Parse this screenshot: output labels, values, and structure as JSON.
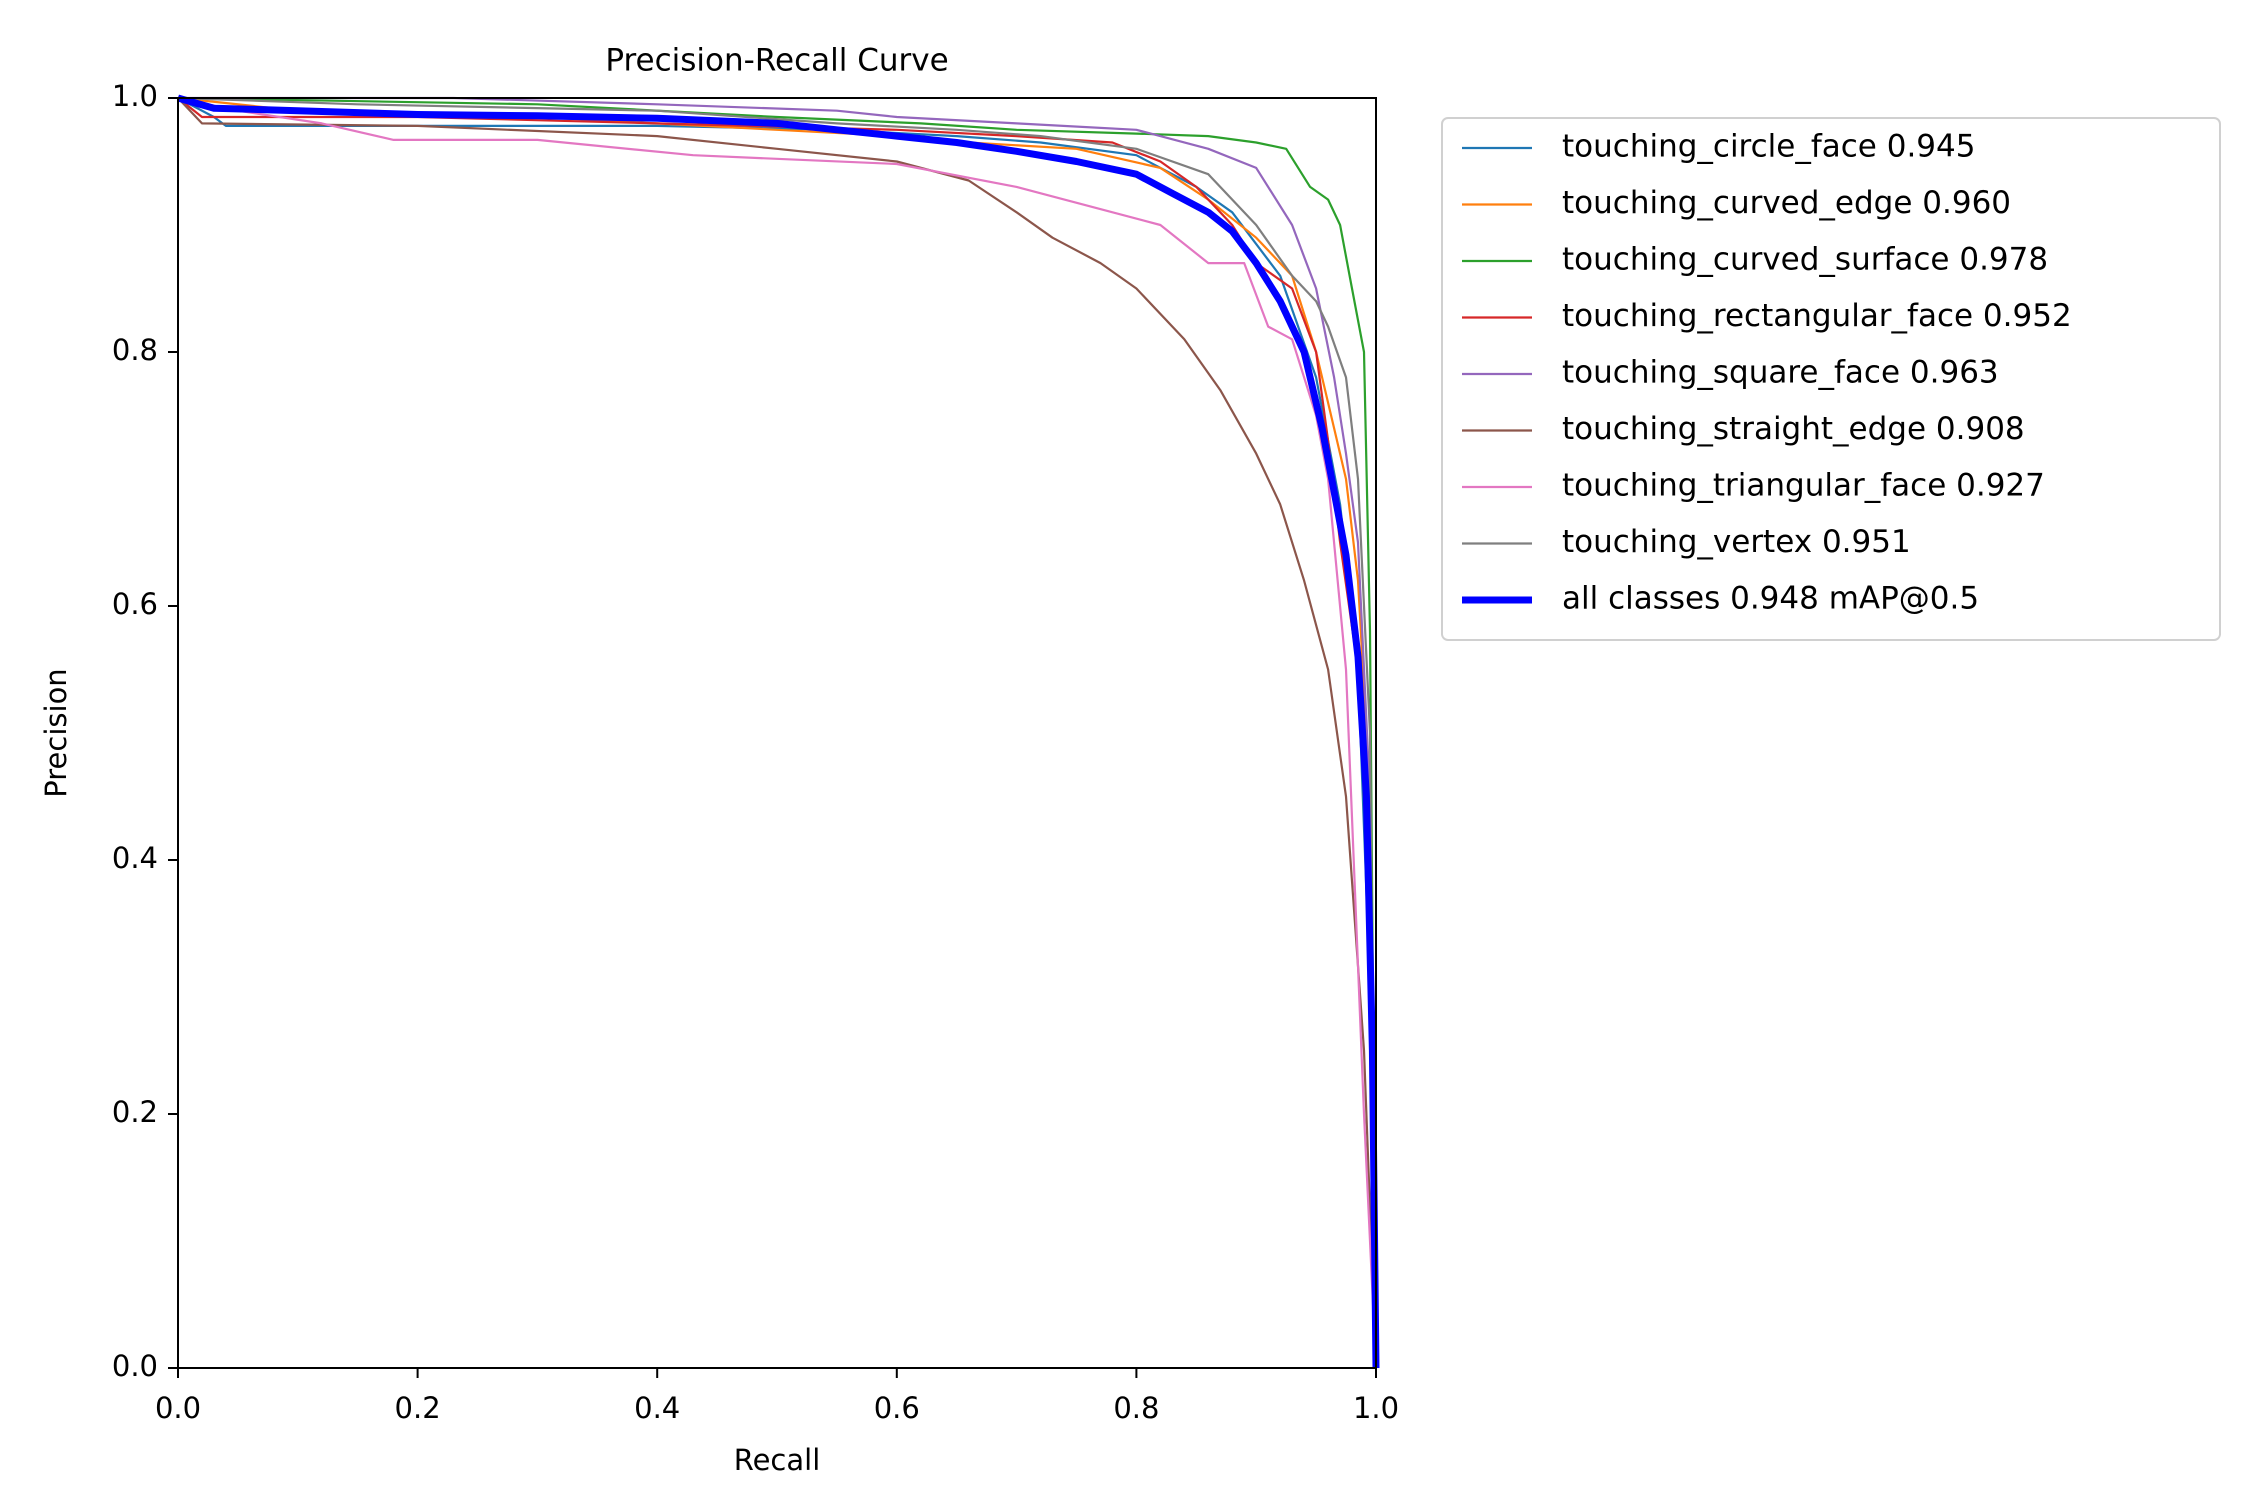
{
  "chart_data": {
    "type": "line",
    "title": "Precision-Recall Curve",
    "xlabel": "Recall",
    "ylabel": "Precision",
    "xlim": [
      0,
      1
    ],
    "ylim": [
      0,
      1
    ],
    "xticks": [
      0.0,
      0.2,
      0.4,
      0.6,
      0.8,
      1.0
    ],
    "yticks": [
      0.0,
      0.2,
      0.4,
      0.6,
      0.8,
      1.0
    ],
    "tick_labels": [
      "0.0",
      "0.2",
      "0.4",
      "0.6",
      "0.8",
      "1.0"
    ],
    "grid": false,
    "legend_position": "outside-right-top",
    "series": [
      {
        "name": "touching_circle_face 0.945",
        "color": "#1f77b4",
        "bold": false,
        "x": [
          0,
          0.03,
          0.04,
          0.2,
          0.4,
          0.55,
          0.65,
          0.72,
          0.8,
          0.85,
          0.88,
          0.92,
          0.95,
          0.97,
          0.985,
          0.995,
          1.0
        ],
        "y": [
          1.0,
          0.985,
          0.978,
          0.978,
          0.978,
          0.975,
          0.97,
          0.965,
          0.955,
          0.93,
          0.91,
          0.86,
          0.78,
          0.68,
          0.55,
          0.3,
          0.0
        ]
      },
      {
        "name": "touching_curved_edge 0.960",
        "color": "#ff7f0e",
        "bold": false,
        "x": [
          0,
          0.1,
          0.3,
          0.5,
          0.6,
          0.66,
          0.75,
          0.82,
          0.86,
          0.9,
          0.93,
          0.95,
          0.965,
          0.975,
          0.985,
          0.995,
          1.0
        ],
        "y": [
          1.0,
          0.99,
          0.985,
          0.975,
          0.97,
          0.965,
          0.96,
          0.945,
          0.92,
          0.89,
          0.86,
          0.8,
          0.74,
          0.7,
          0.62,
          0.45,
          0.0
        ]
      },
      {
        "name": "touching_curved_surface 0.978",
        "color": "#2ca02c",
        "bold": false,
        "x": [
          0,
          0.3,
          0.5,
          0.62,
          0.7,
          0.8,
          0.86,
          0.9,
          0.925,
          0.945,
          0.96,
          0.97,
          0.98,
          0.99,
          0.995,
          1.0
        ],
        "y": [
          1.0,
          0.995,
          0.985,
          0.98,
          0.975,
          0.972,
          0.97,
          0.965,
          0.96,
          0.93,
          0.92,
          0.9,
          0.85,
          0.8,
          0.58,
          0.0
        ]
      },
      {
        "name": "touching_rectangular_face 0.952",
        "color": "#d62728",
        "bold": false,
        "x": [
          0,
          0.02,
          0.2,
          0.4,
          0.6,
          0.7,
          0.78,
          0.82,
          0.85,
          0.88,
          0.9,
          0.93,
          0.95,
          0.96,
          0.97,
          0.985,
          0.995,
          1.0
        ],
        "y": [
          1.0,
          0.985,
          0.985,
          0.98,
          0.975,
          0.97,
          0.965,
          0.95,
          0.93,
          0.9,
          0.87,
          0.85,
          0.8,
          0.73,
          0.65,
          0.55,
          0.35,
          0.0
        ]
      },
      {
        "name": "touching_square_face 0.963",
        "color": "#9467bd",
        "bold": false,
        "x": [
          0,
          0.23,
          0.4,
          0.55,
          0.6,
          0.7,
          0.8,
          0.86,
          0.9,
          0.93,
          0.95,
          0.965,
          0.975,
          0.985,
          0.995,
          1.0
        ],
        "y": [
          1.0,
          1.0,
          0.995,
          0.99,
          0.985,
          0.98,
          0.975,
          0.96,
          0.945,
          0.9,
          0.85,
          0.78,
          0.72,
          0.65,
          0.45,
          0.0
        ]
      },
      {
        "name": "touching_straight_edge 0.908",
        "color": "#8c564b",
        "bold": false,
        "x": [
          0,
          0.02,
          0.2,
          0.4,
          0.5,
          0.6,
          0.66,
          0.7,
          0.73,
          0.77,
          0.8,
          0.84,
          0.87,
          0.9,
          0.92,
          0.94,
          0.96,
          0.975,
          0.99,
          1.0
        ],
        "y": [
          1.0,
          0.98,
          0.978,
          0.97,
          0.96,
          0.95,
          0.935,
          0.91,
          0.89,
          0.87,
          0.85,
          0.81,
          0.77,
          0.72,
          0.68,
          0.62,
          0.55,
          0.45,
          0.25,
          0.0
        ]
      },
      {
        "name": "touching_triangular_face 0.927",
        "color": "#e377c2",
        "bold": false,
        "x": [
          0,
          0.05,
          0.12,
          0.18,
          0.3,
          0.43,
          0.6,
          0.7,
          0.82,
          0.86,
          0.89,
          0.91,
          0.93,
          0.95,
          0.96,
          0.975,
          0.99,
          1.0
        ],
        "y": [
          1.0,
          0.99,
          0.98,
          0.967,
          0.967,
          0.955,
          0.948,
          0.93,
          0.9,
          0.87,
          0.87,
          0.82,
          0.81,
          0.75,
          0.7,
          0.55,
          0.2,
          0.0
        ]
      },
      {
        "name": "touching_vertex 0.951",
        "color": "#7f7f7f",
        "bold": false,
        "x": [
          0,
          0.15,
          0.4,
          0.55,
          0.65,
          0.72,
          0.8,
          0.86,
          0.9,
          0.93,
          0.95,
          0.96,
          0.975,
          0.985,
          0.995,
          1.0
        ],
        "y": [
          1.0,
          0.995,
          0.99,
          0.98,
          0.975,
          0.97,
          0.96,
          0.94,
          0.9,
          0.86,
          0.84,
          0.82,
          0.78,
          0.7,
          0.5,
          0.0
        ]
      },
      {
        "name": "all classes 0.948 mAP@0.5",
        "color": "#0000ff",
        "bold": true,
        "x": [
          0,
          0.03,
          0.1,
          0.2,
          0.3,
          0.4,
          0.5,
          0.55,
          0.6,
          0.65,
          0.7,
          0.75,
          0.8,
          0.83,
          0.86,
          0.88,
          0.9,
          0.92,
          0.94,
          0.955,
          0.965,
          0.975,
          0.985,
          0.992,
          0.997,
          1.0
        ],
        "y": [
          1.0,
          0.992,
          0.99,
          0.987,
          0.986,
          0.984,
          0.98,
          0.975,
          0.97,
          0.965,
          0.958,
          0.95,
          0.94,
          0.925,
          0.91,
          0.895,
          0.87,
          0.84,
          0.8,
          0.74,
          0.69,
          0.64,
          0.56,
          0.45,
          0.25,
          0.0
        ]
      }
    ]
  }
}
